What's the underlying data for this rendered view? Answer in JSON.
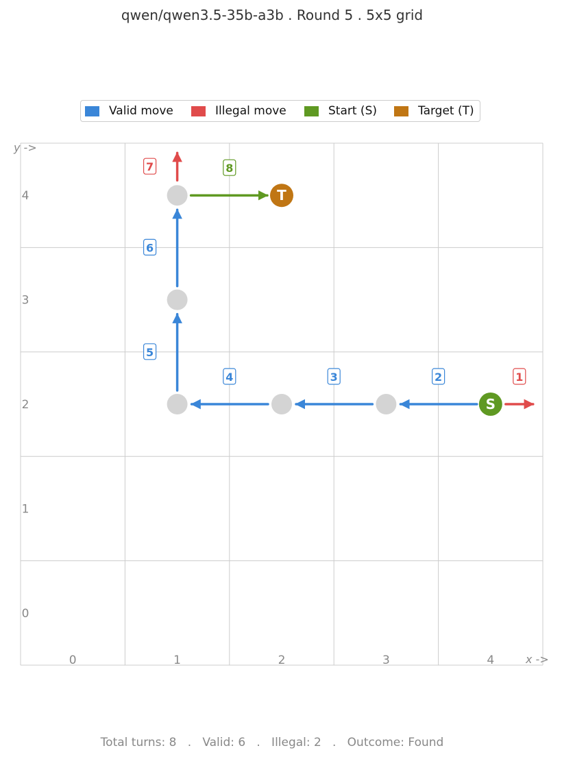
{
  "title": "qwen/qwen3.5-35b-a3b  .  Round 5  .  5x5 grid",
  "legend": {
    "valid": "Valid move",
    "illegal": "Illegal move",
    "start": "Start (S)",
    "target": "Target (T)"
  },
  "colors": {
    "valid": "#3a86d8",
    "illegal": "#e04b4b",
    "start": "#5f9922",
    "target": "#c07614",
    "visited": "#d4d4d4",
    "grid": "#cccccc",
    "axis_text": "#888888"
  },
  "axis": {
    "x_label": "x ->",
    "y_label": "y ->",
    "x_ticks": [
      "0",
      "1",
      "2",
      "3",
      "4"
    ],
    "y_ticks": [
      "0",
      "1",
      "2",
      "3",
      "4"
    ]
  },
  "grid_size": 5,
  "start": {
    "x": 4,
    "y": 2,
    "label": "S"
  },
  "target": {
    "x": 2,
    "y": 4,
    "label": "T"
  },
  "visited": [
    [
      3,
      2
    ],
    [
      2,
      2
    ],
    [
      1,
      2
    ],
    [
      1,
      3
    ],
    [
      1,
      4
    ]
  ],
  "moves": [
    {
      "turn": "1",
      "from": [
        4,
        2
      ],
      "dir": "right",
      "result": "illegal"
    },
    {
      "turn": "2",
      "from": [
        4,
        2
      ],
      "dir": "left",
      "result": "valid"
    },
    {
      "turn": "3",
      "from": [
        3,
        2
      ],
      "dir": "left",
      "result": "valid"
    },
    {
      "turn": "4",
      "from": [
        2,
        2
      ],
      "dir": "left",
      "result": "valid"
    },
    {
      "turn": "5",
      "from": [
        1,
        2
      ],
      "dir": "up",
      "result": "valid"
    },
    {
      "turn": "6",
      "from": [
        1,
        3
      ],
      "dir": "up",
      "result": "valid"
    },
    {
      "turn": "7",
      "from": [
        1,
        4
      ],
      "dir": "up",
      "result": "illegal"
    },
    {
      "turn": "8",
      "from": [
        1,
        4
      ],
      "dir": "right",
      "result": "final"
    }
  ],
  "footer": "Total turns: 8   .   Valid: 6   .   Illegal: 2   .   Outcome: Found"
}
